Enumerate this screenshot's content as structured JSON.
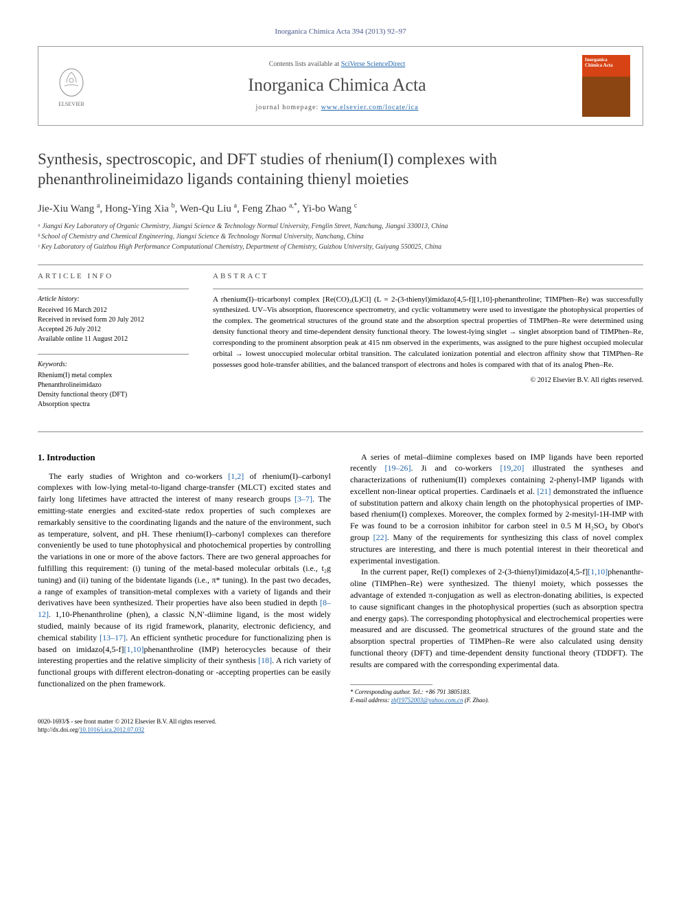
{
  "journal_ref": "Inorganica Chimica Acta 394 (2013) 92–97",
  "header": {
    "contents_prefix": "Contents lists available at ",
    "contents_link": "SciVerse ScienceDirect",
    "journal_name": "Inorganica Chimica Acta",
    "homepage_prefix": "journal homepage: ",
    "homepage_url": "www.elsevier.com/locate/ica",
    "elsevier_label": "ELSEVIER",
    "cover_title_line1": "Inorganica",
    "cover_title_line2": "Chimica Acta"
  },
  "title": "Synthesis, spectroscopic, and DFT studies of rhenium(I) complexes with phenanthrolineimidazo ligands containing thienyl moieties",
  "authors_html": "Jie-Xiu Wang <sup>a</sup>, Hong-Ying Xia <sup>b</sup>, Wen-Qu Liu <sup>a</sup>, Feng Zhao <sup>a,*</sup>, Yi-bo Wang <sup>c</sup>",
  "affiliations": [
    "ᵃ Jiangxi Key Laboratory of Organic Chemistry, Jiangxi Science & Technology Normal University, Fenglin Street, Nanchang, Jiangxi 330013, China",
    "ᵇ School of Chemistry and Chemical Engineering, Jiangxi Science & Technology Normal University, Nanchang, China",
    "ᶜ Key Laboratory of Guizhou High Performance Computational Chemistry, Department of Chemistry, Guizhou University, Guiyang 550025, China"
  ],
  "article_info": {
    "heading": "ARTICLE INFO",
    "history_label": "Article history:",
    "history": [
      "Received 16 March 2012",
      "Received in revised form 20 July 2012",
      "Accepted 26 July 2012",
      "Available online 11 August 2012"
    ],
    "keywords_label": "Keywords:",
    "keywords": [
      "Rhenium(I) metal complex",
      "Phenanthrolineimidazo",
      "Density functional theory (DFT)",
      "Absorption spectra"
    ]
  },
  "abstract": {
    "heading": "ABSTRACT",
    "text": "A rhenium(I)–tricarbonyl complex [Re(CO)₃(L)Cl] (L = 2-(3-thienyl)imidazo[4,5-f][1,10]-phenanthroline; TIMPhen–Re) was successfully synthesized. UV–Vis absorption, fluorescence spectrometry, and cyclic voltammetry were used to investigate the photophysical properties of the complex. The geometrical structures of the ground state and the absorption spectral properties of TIMPhen–Re were determined using density functional theory and time-dependent density functional theory. The lowest-lying singlet → singlet absorption band of TIMPhen–Re, corresponding to the prominent absorption peak at 415 nm observed in the experiments, was assigned to the pure highest occupied molecular orbital → lowest unoccupied molecular orbital transition. The calculated ionization potential and electron affinity show that TIMPhen–Re possesses good hole-transfer abilities, and the balanced transport of electrons and holes is compared with that of its analog Phen–Re.",
    "copyright": "© 2012 Elsevier B.V. All rights reserved."
  },
  "body": {
    "section_heading": "1. Introduction",
    "paragraphs": [
      "The early studies of Wrighton and co-workers [1,2] of rhenium(I)–carbonyl complexes with low-lying metal-to-ligand charge-transfer (MLCT) excited states and fairly long lifetimes have attracted the interest of many research groups [3–7]. The emitting-state energies and excited-state redox properties of such complexes are remarkably sensitive to the coordinating ligands and the nature of the environment, such as temperature, solvent, and pH. These rhenium(I)–carbonyl complexes can therefore conveniently be used to tune photophysical and photochemical properties by controlling the variations in one or more of the above factors. There are two general approaches for fulfilling this requirement: (i) tuning of the metal-based molecular orbitals (i.e., t₂g tuning) and (ii) tuning of the bidentate ligands (i.e., π* tuning). In the past two decades, a range of examples of transition-metal complexes with a variety of ligands and their derivatives have been synthesized. Their properties have also been studied in depth [8–12]. 1,10-Phenanthroline (phen), a classic N,N′-diimine ligand, is the most widely studied, mainly because of its rigid framework, planarity, electronic deficiency, and chemical stability [13–17]. An efficient synthetic procedure for functionalizing phen is based on imidazo[4,5-f][1,10]phenanthroline (IMP) heterocycles because of their interesting properties and the relative simplicity of their synthesis [18]. A rich variety of functional groups with different electron-donating or -accepting properties can be easily functionalized on the phen framework.",
      "A series of metal–diimine complexes based on IMP ligands have been reported recently [19–26]. Ji and co-workers [19,20] illustrated the syntheses and characterizations of ruthenium(II) complexes containing 2-phenyl-IMP ligands with excellent non-linear optical properties. Cardinaels et al. [21] demonstrated the influence of substitution pattern and alkoxy chain length on the photophysical properties of IMP-based rhenium(I) complexes. Moreover, the complex formed by 2-mesityl-1H-IMP with Fe was found to be a corrosion inhibitor for carbon steel in 0.5 M H₂SO₄ by Obot's group [22]. Many of the requirements for synthesizing this class of novel complex structures are interesting, and there is much potential interest in their theoretical and experimental investigation.",
      "In the current paper, Re(I) complexes of 2-(3-thienyl)imidazo[4,5-f][1,10]phenanthr-oline (TIMPhen–Re) were synthesized. The thienyl moiety, which possesses the advantage of extended π-conjugation as well as electron-donating abilities, is expected to cause significant changes in the photophysical properties (such as absorption spectra and energy gaps). The corresponding photophysical and electrochemical properties were measured and are discussed. The geometrical structures of the ground state and the absorption spectral properties of TIMPhen–Re were also calculated using density functional theory (DFT) and time-dependent density functional theory (TDDFT). The results are compared with the corresponding experimental data."
    ]
  },
  "corresponding": {
    "label": "* Corresponding author. Tel.: +86 791 3805183.",
    "email_label": "E-mail address: ",
    "email": "zhf19752003@yahoo.com.cn",
    "email_suffix": " (F. Zhao)."
  },
  "footer": {
    "line1": "0020-1693/$ - see front matter © 2012 Elsevier B.V. All rights reserved.",
    "doi_prefix": "http://dx.doi.org/",
    "doi": "10.1016/j.ica.2012.07.032"
  },
  "colors": {
    "link": "#2266aa",
    "text": "#000000",
    "heading_gray": "#444444",
    "cover_top": "#d84315",
    "cover_bottom": "#8b4513"
  }
}
